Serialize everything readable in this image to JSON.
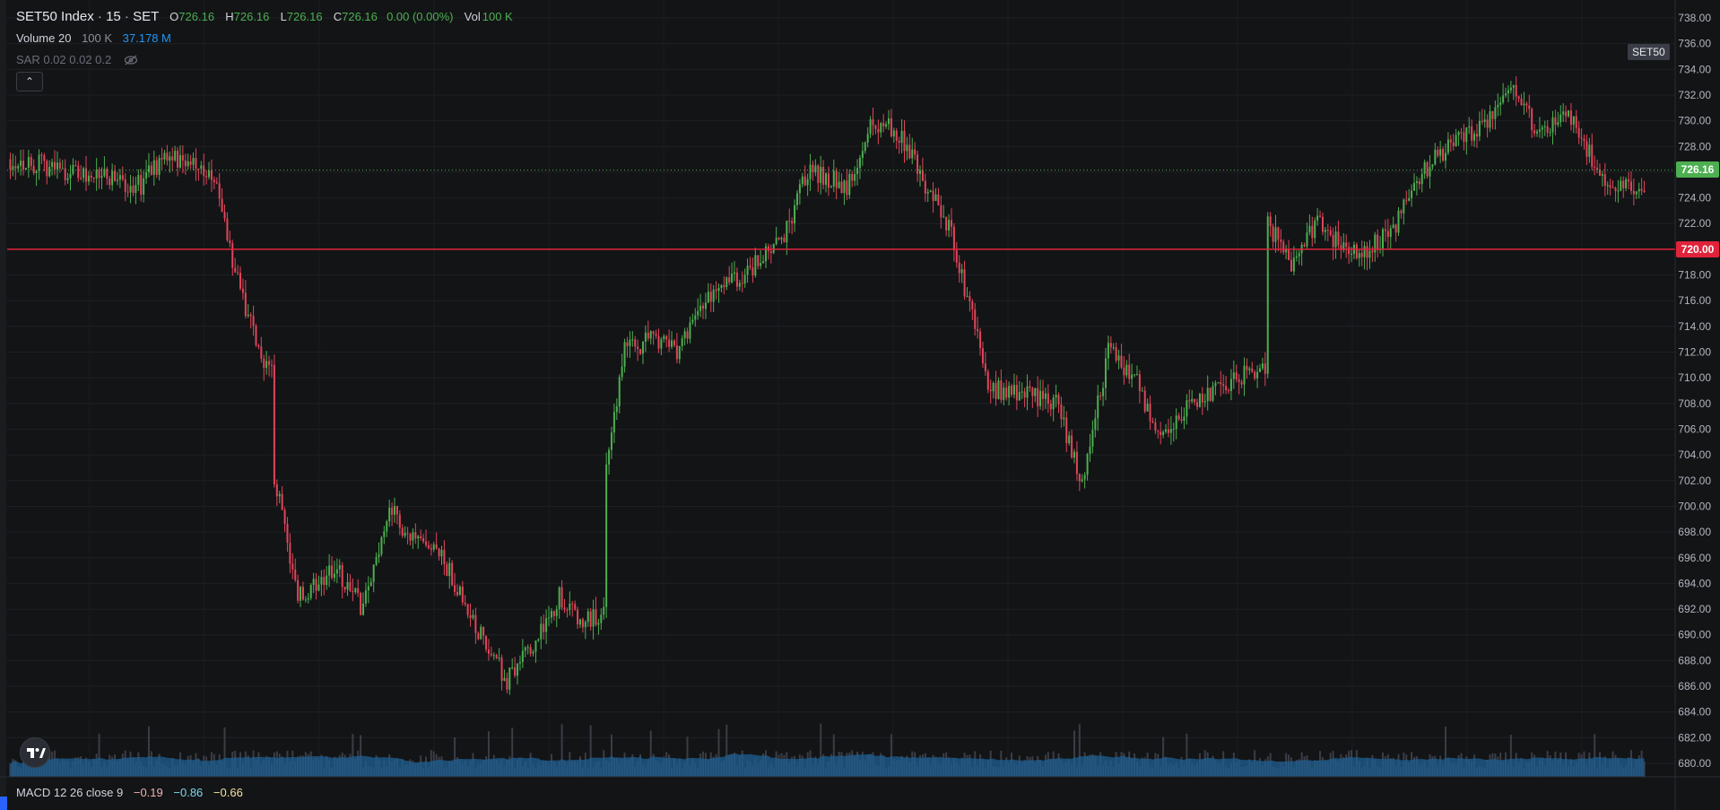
{
  "legend": {
    "symbol": "SET50 Index",
    "interval": "15",
    "exchange": "SET",
    "o_label": "O",
    "o_value": "726.16",
    "h_label": "H",
    "h_value": "726.16",
    "l_label": "L",
    "l_value": "726.16",
    "c_label": "C",
    "c_value": "726.16",
    "change": "0.00 (0.00%)",
    "vol_label": "Vol",
    "vol_value": "100 K"
  },
  "volume_legend": {
    "name": "Volume 20",
    "value1": "100 K",
    "value2": "37.178 M"
  },
  "sar_legend": {
    "name": "SAR 0.02 0.02 0.2"
  },
  "macd_legend": {
    "name": "MACD 12 26 close 9",
    "v1": "−0.19",
    "v2": "−0.86",
    "v3": "−0.66"
  },
  "price_tags": {
    "last": "726.16",
    "line": "720.00",
    "symbol": "SET50"
  },
  "colors": {
    "up": "#4caf50",
    "down": "#e0455a",
    "volume_area": "#1f5f93",
    "hline": "#e0233b",
    "background": "#131416"
  },
  "icons": {
    "eye": "eye-slash-icon",
    "collapse": "chevron-up-icon",
    "logo": "tradingview-logo-icon"
  },
  "chart_data": {
    "type": "candlestick",
    "y_axis_ticks": [
      "680.00",
      "682.00",
      "684.00",
      "686.00",
      "688.00",
      "690.00",
      "692.00",
      "694.00",
      "696.00",
      "698.00",
      "700.00",
      "702.00",
      "704.00",
      "706.00",
      "708.00",
      "710.00",
      "712.00",
      "714.00",
      "716.00",
      "718.00",
      "720.00",
      "722.00",
      "724.00",
      "726.00",
      "728.00",
      "730.00",
      "732.00",
      "734.00",
      "736.00",
      "738.00"
    ],
    "ylim": [
      679,
      739
    ],
    "horizontal_line": 720.0,
    "last_price": 726.16,
    "bar_count": 300,
    "anchors": [
      [
        0,
        727
      ],
      [
        25,
        726
      ],
      [
        35,
        725.5
      ],
      [
        50,
        725
      ],
      [
        60,
        727.5
      ],
      [
        70,
        726.5
      ],
      [
        78,
        725.5
      ],
      [
        85,
        719
      ],
      [
        95,
        712
      ],
      [
        100,
        710.5
      ],
      [
        101,
        702.5
      ],
      [
        110,
        693
      ],
      [
        125,
        695
      ],
      [
        135,
        692
      ],
      [
        145,
        700
      ],
      [
        155,
        697
      ],
      [
        165,
        696
      ],
      [
        180,
        690
      ],
      [
        190,
        686.5
      ],
      [
        200,
        689
      ],
      [
        210,
        693
      ],
      [
        220,
        691
      ],
      [
        227,
        691.5
      ],
      [
        228,
        703
      ],
      [
        235,
        712
      ],
      [
        245,
        713
      ],
      [
        255,
        712
      ],
      [
        265,
        716
      ],
      [
        280,
        718
      ],
      [
        295,
        720.5
      ],
      [
        305,
        726
      ],
      [
        320,
        725
      ],
      [
        330,
        730
      ],
      [
        340,
        729
      ],
      [
        350,
        725
      ],
      [
        360,
        721.5
      ],
      [
        365,
        717
      ],
      [
        375,
        709
      ],
      [
        385,
        709
      ],
      [
        400,
        708
      ],
      [
        410,
        702
      ],
      [
        420,
        712
      ],
      [
        430,
        710
      ],
      [
        440,
        705
      ],
      [
        450,
        708
      ],
      [
        460,
        709
      ],
      [
        470,
        710
      ],
      [
        480,
        711
      ],
      [
        481,
        722
      ],
      [
        490,
        719
      ],
      [
        500,
        722
      ],
      [
        510,
        720
      ],
      [
        520,
        720
      ],
      [
        530,
        722
      ],
      [
        540,
        726
      ],
      [
        550,
        728
      ],
      [
        560,
        729
      ],
      [
        570,
        731
      ],
      [
        575,
        732
      ],
      [
        585,
        729
      ],
      [
        595,
        731
      ],
      [
        605,
        727
      ],
      [
        612,
        725
      ],
      [
        625,
        725
      ]
    ],
    "volume_note": "volume histogram and 20-period volume MA area shown in bottom band"
  }
}
